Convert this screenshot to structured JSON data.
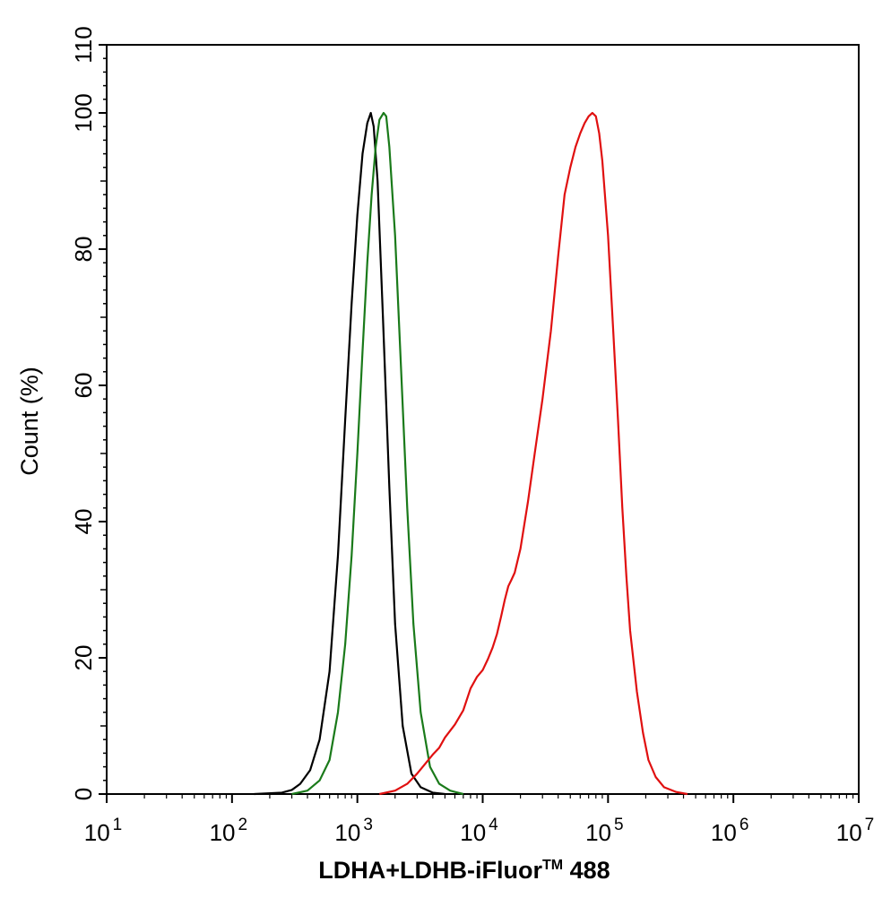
{
  "chart_data": {
    "type": "line",
    "xscale": "log",
    "xlim": [
      10,
      10000000
    ],
    "ylim": [
      0,
      110
    ],
    "xticks": [
      {
        "value": 10,
        "base": "10",
        "exp": "1"
      },
      {
        "value": 100,
        "base": "10",
        "exp": "2"
      },
      {
        "value": 1000,
        "base": "10",
        "exp": "3"
      },
      {
        "value": 10000,
        "base": "10",
        "exp": "4"
      },
      {
        "value": 100000,
        "base": "10",
        "exp": "5"
      },
      {
        "value": 1000000,
        "base": "10",
        "exp": "6"
      },
      {
        "value": 10000000,
        "base": "10",
        "exp": "7"
      }
    ],
    "yticks": [
      "0",
      "20",
      "40",
      "60",
      "80",
      "100",
      "110"
    ],
    "xlabel": "LDHA+LDHB-iFluor",
    "xlabel_tm": "TM",
    "xlabel_suffix": " 488",
    "ylabel": "Count  (%)",
    "grid": false,
    "series": [
      {
        "color": "#000000",
        "points": [
          [
            150,
            0
          ],
          [
            250,
            0.2
          ],
          [
            300,
            0.6
          ],
          [
            350,
            1.5
          ],
          [
            420,
            3.5
          ],
          [
            500,
            8
          ],
          [
            600,
            18
          ],
          [
            700,
            35
          ],
          [
            800,
            55
          ],
          [
            900,
            72
          ],
          [
            1000,
            85
          ],
          [
            1100,
            94
          ],
          [
            1200,
            98.5
          ],
          [
            1280,
            100
          ],
          [
            1350,
            98
          ],
          [
            1450,
            90
          ],
          [
            1600,
            70
          ],
          [
            1800,
            45
          ],
          [
            2000,
            25
          ],
          [
            2300,
            10
          ],
          [
            2700,
            3
          ],
          [
            3200,
            1
          ],
          [
            4000,
            0.2
          ],
          [
            5000,
            0
          ]
        ]
      },
      {
        "color": "#1a7a1a",
        "points": [
          [
            300,
            0
          ],
          [
            400,
            0.5
          ],
          [
            500,
            2
          ],
          [
            600,
            5
          ],
          [
            700,
            12
          ],
          [
            800,
            22
          ],
          [
            900,
            35
          ],
          [
            1000,
            50
          ],
          [
            1100,
            65
          ],
          [
            1200,
            78
          ],
          [
            1300,
            88
          ],
          [
            1400,
            95
          ],
          [
            1500,
            99
          ],
          [
            1620,
            100
          ],
          [
            1700,
            99.5
          ],
          [
            1800,
            95
          ],
          [
            2000,
            82
          ],
          [
            2200,
            65
          ],
          [
            2500,
            42
          ],
          [
            2800,
            25
          ],
          [
            3200,
            12
          ],
          [
            3800,
            4
          ],
          [
            4500,
            1.5
          ],
          [
            5500,
            0.5
          ],
          [
            7000,
            0
          ]
        ]
      },
      {
        "color": "#e01010",
        "points": [
          [
            1500,
            0
          ],
          [
            2000,
            0.5
          ],
          [
            2500,
            1.5
          ],
          [
            3000,
            3
          ],
          [
            3500,
            4.5
          ],
          [
            4000,
            5.8
          ],
          [
            4500,
            6.8
          ],
          [
            5000,
            8.3
          ],
          [
            6000,
            10.2
          ],
          [
            7000,
            12.3
          ],
          [
            8000,
            15.5
          ],
          [
            9000,
            17.2
          ],
          [
            10000,
            18.2
          ],
          [
            11000,
            19.8
          ],
          [
            12000,
            21.5
          ],
          [
            13000,
            23.5
          ],
          [
            14000,
            26
          ],
          [
            15000,
            28.5
          ],
          [
            16000,
            30.5
          ],
          [
            17000,
            31.5
          ],
          [
            18000,
            32.5
          ],
          [
            20000,
            36
          ],
          [
            23000,
            43
          ],
          [
            26000,
            50
          ],
          [
            30000,
            58
          ],
          [
            35000,
            68
          ],
          [
            40000,
            79
          ],
          [
            45000,
            88
          ],
          [
            50000,
            92
          ],
          [
            55000,
            95
          ],
          [
            60000,
            97
          ],
          [
            65000,
            98.5
          ],
          [
            70000,
            99.5
          ],
          [
            75000,
            100
          ],
          [
            80000,
            99.5
          ],
          [
            85000,
            97
          ],
          [
            90000,
            93
          ],
          [
            100000,
            82
          ],
          [
            110000,
            68
          ],
          [
            120000,
            55
          ],
          [
            130000,
            42
          ],
          [
            140000,
            32
          ],
          [
            150000,
            24
          ],
          [
            170000,
            15
          ],
          [
            190000,
            9
          ],
          [
            210000,
            5
          ],
          [
            240000,
            2.5
          ],
          [
            280000,
            1
          ],
          [
            350000,
            0.3
          ],
          [
            430000,
            0
          ]
        ]
      }
    ]
  }
}
